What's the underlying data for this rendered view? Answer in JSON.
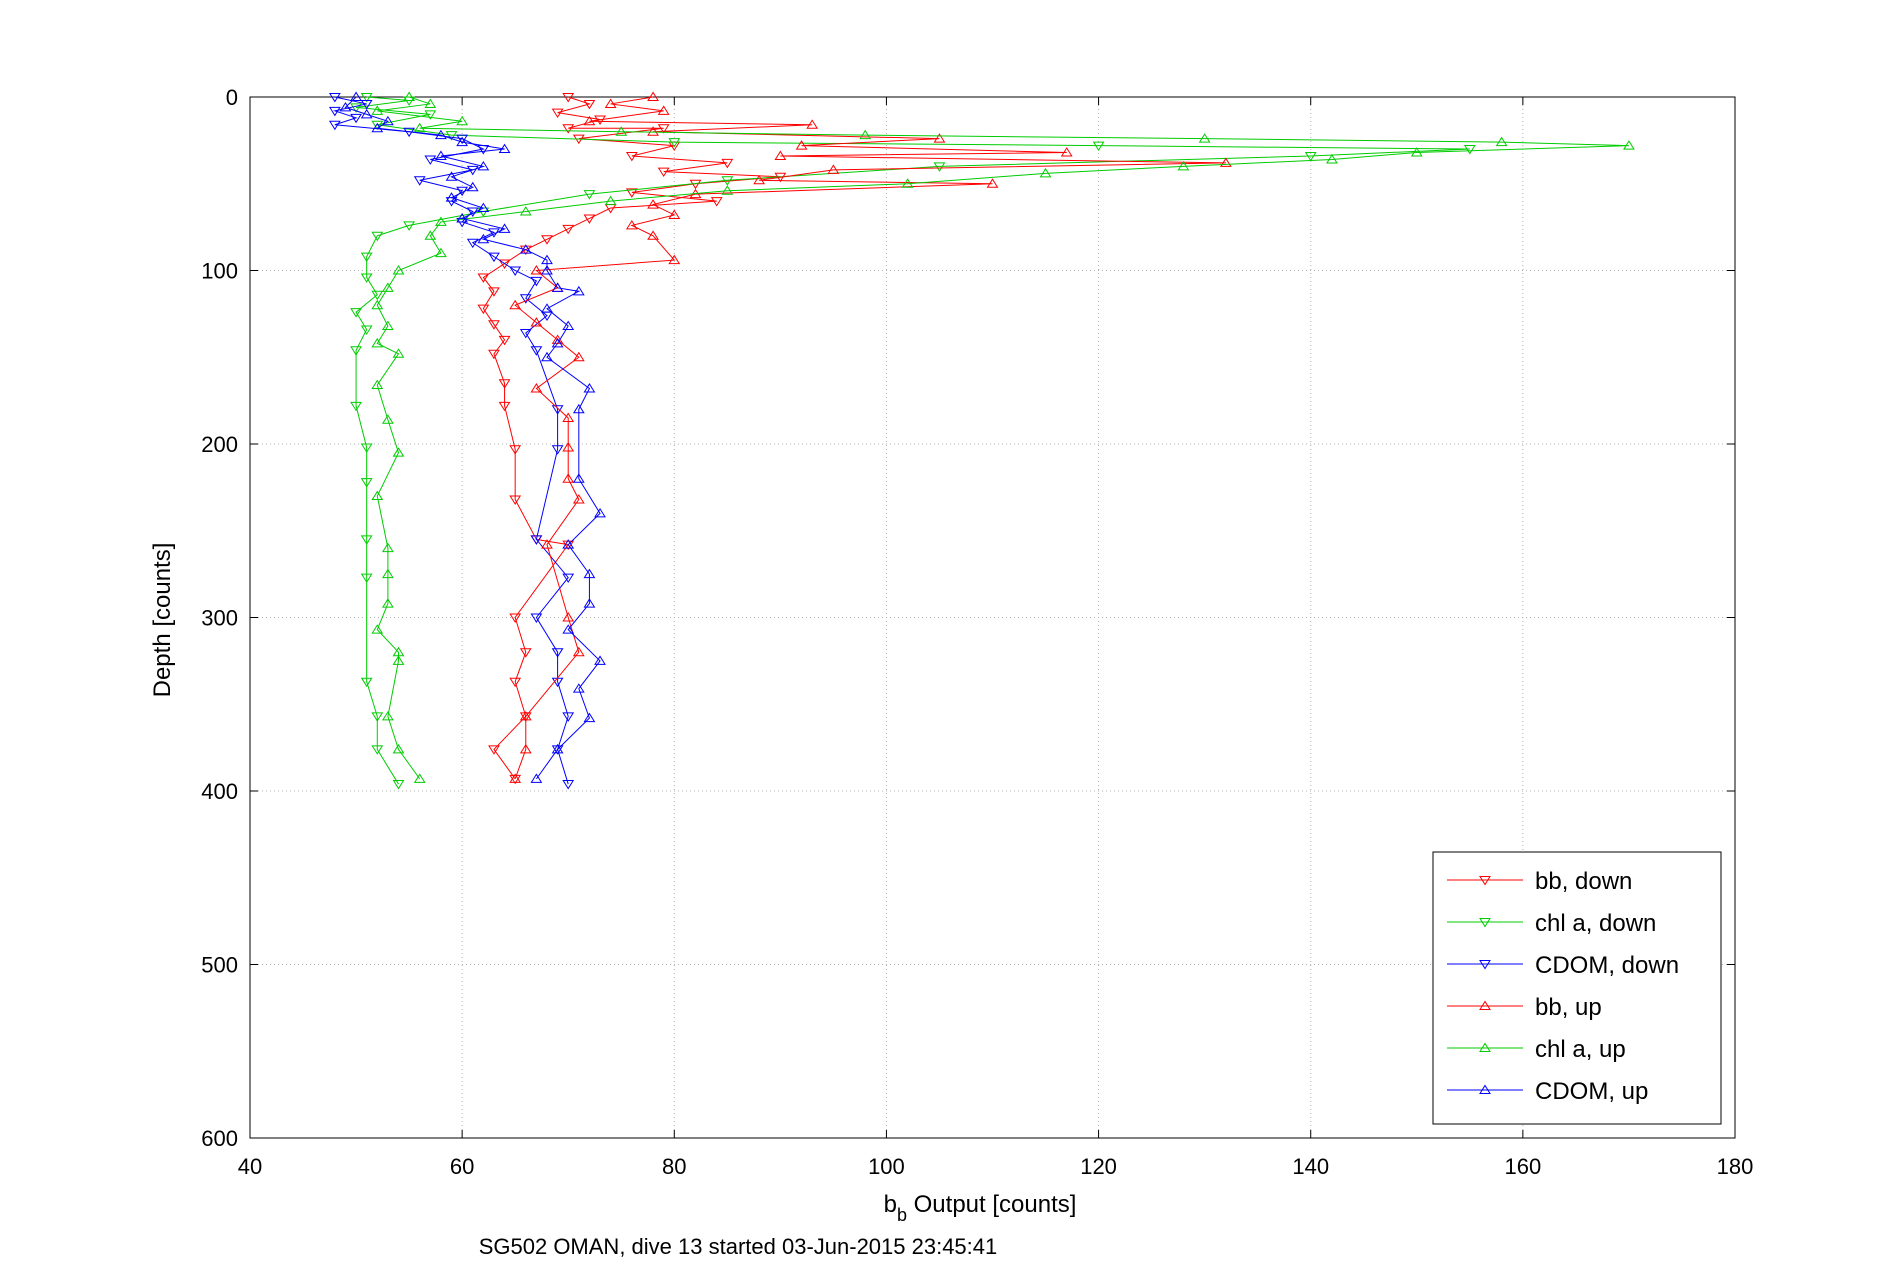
{
  "chart_data": {
    "type": "scatter",
    "title": "",
    "xlabel_main": "b",
    "xlabel_sub": "b",
    "xlabel_rest": " Output [counts]",
    "ylabel": "Depth [counts]",
    "caption": "SG502 OMAN, dive 13 started 03-Jun-2015 23:45:41",
    "xlim": [
      40,
      180
    ],
    "ylim": [
      0,
      600
    ],
    "y_reversed": true,
    "grid": true,
    "xticks": [
      40,
      60,
      80,
      100,
      120,
      140,
      160,
      180
    ],
    "yticks": [
      0,
      100,
      200,
      300,
      400,
      500,
      600
    ],
    "xtick_labels": [
      "40",
      "60",
      "80",
      "100",
      "120",
      "140",
      "160",
      "180"
    ],
    "ytick_labels": [
      "0",
      "100",
      "200",
      "300",
      "400",
      "500",
      "600"
    ],
    "legend_position": "bottom-right",
    "series": [
      {
        "name": "bb, down",
        "color": "#ff0000",
        "marker": "triangle-down",
        "points": [
          [
            70,
            0
          ],
          [
            72,
            4
          ],
          [
            69,
            9
          ],
          [
            73,
            13
          ],
          [
            70,
            18
          ],
          [
            79,
            18
          ],
          [
            71,
            24
          ],
          [
            80,
            28
          ],
          [
            76,
            34
          ],
          [
            85,
            38
          ],
          [
            79,
            43
          ],
          [
            90,
            46
          ],
          [
            82,
            50
          ],
          [
            76,
            55
          ],
          [
            84,
            60
          ],
          [
            74,
            64
          ],
          [
            72,
            70
          ],
          [
            70,
            76
          ],
          [
            68,
            82
          ],
          [
            66,
            88
          ],
          [
            64,
            96
          ],
          [
            62,
            104
          ],
          [
            63,
            112
          ],
          [
            62,
            122
          ],
          [
            63,
            131
          ],
          [
            64,
            140
          ],
          [
            63,
            148
          ],
          [
            64,
            165
          ],
          [
            64,
            178
          ],
          [
            65,
            203
          ],
          [
            65,
            232
          ],
          [
            67,
            255
          ],
          [
            70,
            258
          ],
          [
            65,
            300
          ],
          [
            66,
            320
          ],
          [
            65,
            337
          ],
          [
            66,
            357
          ],
          [
            63,
            376
          ],
          [
            65,
            393
          ]
        ]
      },
      {
        "name": "chl a, down",
        "color": "#00cc00",
        "marker": "triangle-down",
        "points": [
          [
            51,
            0
          ],
          [
            55,
            2
          ],
          [
            50,
            6
          ],
          [
            57,
            10
          ],
          [
            52,
            16
          ],
          [
            59,
            22
          ],
          [
            80,
            26
          ],
          [
            120,
            28
          ],
          [
            155,
            30
          ],
          [
            140,
            34
          ],
          [
            105,
            40
          ],
          [
            85,
            48
          ],
          [
            72,
            56
          ],
          [
            62,
            66
          ],
          [
            55,
            74
          ],
          [
            52,
            80
          ],
          [
            51,
            92
          ],
          [
            51,
            104
          ],
          [
            52,
            114
          ],
          [
            50,
            124
          ],
          [
            51,
            134
          ],
          [
            50,
            146
          ],
          [
            50,
            178
          ],
          [
            51,
            202
          ],
          [
            51,
            222
          ],
          [
            51,
            255
          ],
          [
            51,
            277
          ],
          [
            51,
            337
          ],
          [
            52,
            357
          ],
          [
            52,
            376
          ],
          [
            54,
            396
          ]
        ]
      },
      {
        "name": "CDOM, down",
        "color": "#0000ff",
        "marker": "triangle-down",
        "points": [
          [
            48,
            0
          ],
          [
            51,
            4
          ],
          [
            48,
            8
          ],
          [
            50,
            12
          ],
          [
            48,
            16
          ],
          [
            55,
            20
          ],
          [
            60,
            24
          ],
          [
            62,
            30
          ],
          [
            57,
            36
          ],
          [
            61,
            42
          ],
          [
            56,
            48
          ],
          [
            60,
            54
          ],
          [
            59,
            60
          ],
          [
            61,
            66
          ],
          [
            60,
            72
          ],
          [
            63,
            78
          ],
          [
            61,
            84
          ],
          [
            63,
            92
          ],
          [
            65,
            100
          ],
          [
            67,
            106
          ],
          [
            66,
            116
          ],
          [
            68,
            126
          ],
          [
            66,
            136
          ],
          [
            67,
            146
          ],
          [
            69,
            180
          ],
          [
            69,
            203
          ],
          [
            67,
            255
          ],
          [
            70,
            277
          ],
          [
            67,
            300
          ],
          [
            69,
            320
          ],
          [
            69,
            337
          ],
          [
            70,
            357
          ],
          [
            69,
            376
          ],
          [
            70,
            396
          ]
        ]
      },
      {
        "name": "bb, up",
        "color": "#ff0000",
        "marker": "triangle-up",
        "points": [
          [
            78,
            0
          ],
          [
            74,
            4
          ],
          [
            79,
            8
          ],
          [
            72,
            14
          ],
          [
            93,
            16
          ],
          [
            78,
            20
          ],
          [
            105,
            24
          ],
          [
            92,
            28
          ],
          [
            117,
            32
          ],
          [
            90,
            34
          ],
          [
            132,
            38
          ],
          [
            95,
            42
          ],
          [
            88,
            48
          ],
          [
            110,
            50
          ],
          [
            82,
            56
          ],
          [
            78,
            62
          ],
          [
            80,
            68
          ],
          [
            76,
            74
          ],
          [
            78,
            80
          ],
          [
            80,
            94
          ],
          [
            67,
            100
          ],
          [
            69,
            110
          ],
          [
            65,
            120
          ],
          [
            67,
            130
          ],
          [
            69,
            140
          ],
          [
            71,
            150
          ],
          [
            67,
            168
          ],
          [
            70,
            185
          ],
          [
            70,
            202
          ],
          [
            70,
            220
          ],
          [
            71,
            232
          ],
          [
            68,
            258
          ],
          [
            70,
            300
          ],
          [
            71,
            320
          ],
          [
            66,
            357
          ],
          [
            66,
            376
          ],
          [
            65,
            393
          ]
        ]
      },
      {
        "name": "chl a, up",
        "color": "#00cc00",
        "marker": "triangle-up",
        "points": [
          [
            55,
            0
          ],
          [
            57,
            4
          ],
          [
            52,
            8
          ],
          [
            60,
            14
          ],
          [
            56,
            18
          ],
          [
            75,
            20
          ],
          [
            98,
            22
          ],
          [
            130,
            24
          ],
          [
            158,
            26
          ],
          [
            170,
            28
          ],
          [
            150,
            32
          ],
          [
            142,
            36
          ],
          [
            128,
            40
          ],
          [
            115,
            44
          ],
          [
            102,
            50
          ],
          [
            85,
            54
          ],
          [
            74,
            60
          ],
          [
            66,
            66
          ],
          [
            58,
            72
          ],
          [
            57,
            80
          ],
          [
            58,
            90
          ],
          [
            54,
            100
          ],
          [
            53,
            110
          ],
          [
            52,
            120
          ],
          [
            53,
            132
          ],
          [
            52,
            142
          ],
          [
            54,
            148
          ],
          [
            52,
            166
          ],
          [
            53,
            186
          ],
          [
            54,
            205
          ],
          [
            52,
            230
          ],
          [
            53,
            260
          ],
          [
            53,
            275
          ],
          [
            53,
            292
          ],
          [
            52,
            307
          ],
          [
            54,
            320
          ],
          [
            54,
            325
          ],
          [
            53,
            357
          ],
          [
            54,
            376
          ],
          [
            56,
            393
          ]
        ]
      },
      {
        "name": "CDOM, up",
        "color": "#0000ff",
        "marker": "triangle-up",
        "points": [
          [
            50,
            0
          ],
          [
            49,
            6
          ],
          [
            51,
            10
          ],
          [
            53,
            14
          ],
          [
            52,
            18
          ],
          [
            58,
            22
          ],
          [
            60,
            26
          ],
          [
            64,
            30
          ],
          [
            58,
            34
          ],
          [
            62,
            40
          ],
          [
            59,
            46
          ],
          [
            61,
            52
          ],
          [
            59,
            58
          ],
          [
            62,
            64
          ],
          [
            60,
            70
          ],
          [
            64,
            76
          ],
          [
            62,
            82
          ],
          [
            66,
            88
          ],
          [
            68,
            94
          ],
          [
            68,
            100
          ],
          [
            69,
            110
          ],
          [
            71,
            112
          ],
          [
            68,
            122
          ],
          [
            70,
            132
          ],
          [
            69,
            142
          ],
          [
            68,
            150
          ],
          [
            72,
            168
          ],
          [
            71,
            180
          ],
          [
            71,
            220
          ],
          [
            73,
            240
          ],
          [
            70,
            258
          ],
          [
            72,
            275
          ],
          [
            72,
            292
          ],
          [
            70,
            307
          ],
          [
            73,
            325
          ],
          [
            71,
            341
          ],
          [
            72,
            358
          ],
          [
            69,
            376
          ],
          [
            67,
            393
          ]
        ]
      }
    ]
  }
}
